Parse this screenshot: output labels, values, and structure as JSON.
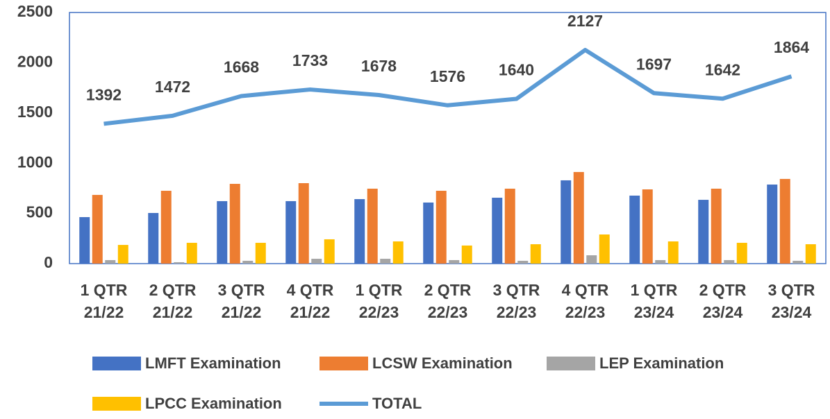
{
  "chart_data": {
    "type": "bar",
    "categories": [
      "1 QTR 21/22",
      "2 QTR 21/22",
      "3 QTR 21/22",
      "4 QTR 21/22",
      "1 QTR 22/23",
      "2 QTR 22/23",
      "3 QTR 22/23",
      "4 QTR 22/23",
      "1 QTR 23/24",
      "2 QTR 23/24",
      "3 QTR 23/24"
    ],
    "series": [
      {
        "name": "LMFT Examination",
        "color": "#4472c4",
        "values": [
          463,
          504,
          622,
          622,
          642,
          608,
          656,
          829,
          677,
          635,
          787
        ]
      },
      {
        "name": "LCSW Examination",
        "color": "#ed7d31",
        "values": [
          684,
          725,
          794,
          801,
          746,
          725,
          746,
          912,
          739,
          746,
          843
        ]
      },
      {
        "name": "LEP Examination",
        "color": "#a5a5a5",
        "values": [
          35,
          14,
          28,
          48,
          48,
          35,
          28,
          83,
          35,
          35,
          28
        ]
      },
      {
        "name": "LPCC Examination",
        "color": "#ffc000",
        "values": [
          186,
          207,
          207,
          242,
          221,
          180,
          193,
          290,
          221,
          207,
          193
        ]
      },
      {
        "name": "TOTAL",
        "type": "line",
        "color": "#5b9bd5",
        "values": [
          1392,
          1472,
          1668,
          1733,
          1678,
          1576,
          1640,
          2127,
          1697,
          1642,
          1864
        ]
      }
    ],
    "ylim": [
      0,
      2500
    ],
    "yticks": [
      0,
      500,
      1000,
      1500,
      2000,
      2500
    ],
    "grid": false,
    "legend": "bottom"
  }
}
